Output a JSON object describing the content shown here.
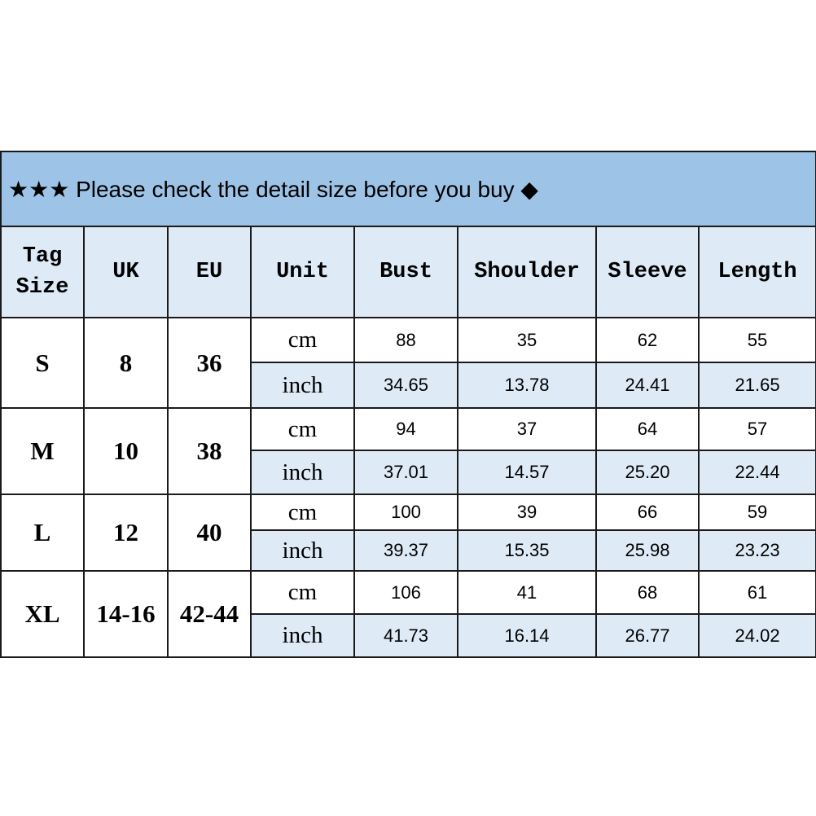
{
  "banner": {
    "text": "★★★ Please check the detail size before you buy ◆"
  },
  "headers": [
    "Tag Size",
    "UK",
    "EU",
    "Unit",
    "Bust",
    "Shoulder",
    "Sleeve",
    "Length"
  ],
  "colors": {
    "banner": "#9dc3e6",
    "header": "#deebf7",
    "inch_row": "#deebf7"
  },
  "rows": [
    {
      "tag": "S",
      "uk": "8",
      "eu": "36",
      "cm": {
        "unit": "cm",
        "values": [
          "88",
          "35",
          "62",
          "55"
        ]
      },
      "inch": {
        "unit": "inch",
        "values": [
          "34.65",
          "13.78",
          "24.41",
          "21.65"
        ]
      }
    },
    {
      "tag": "M",
      "uk": "10",
      "eu": "38",
      "cm": {
        "unit": "cm",
        "values": [
          "94",
          "37",
          "64",
          "57"
        ]
      },
      "inch": {
        "unit": "inch",
        "values": [
          "37.01",
          "14.57",
          "25.20",
          "22.44"
        ]
      }
    },
    {
      "tag": "L",
      "uk": "12",
      "eu": "40",
      "cm": {
        "unit": "cm",
        "values": [
          "100",
          "39",
          "66",
          "59"
        ]
      },
      "inch": {
        "unit": "inch",
        "values": [
          "39.37",
          "15.35",
          "25.98",
          "23.23"
        ]
      }
    },
    {
      "tag": "XL",
      "uk": "14-16",
      "eu": "42-44",
      "cm": {
        "unit": "cm",
        "values": [
          "106",
          "41",
          "68",
          "61"
        ]
      },
      "inch": {
        "unit": "inch",
        "values": [
          "41.73",
          "16.14",
          "26.77",
          "24.02"
        ]
      }
    }
  ]
}
